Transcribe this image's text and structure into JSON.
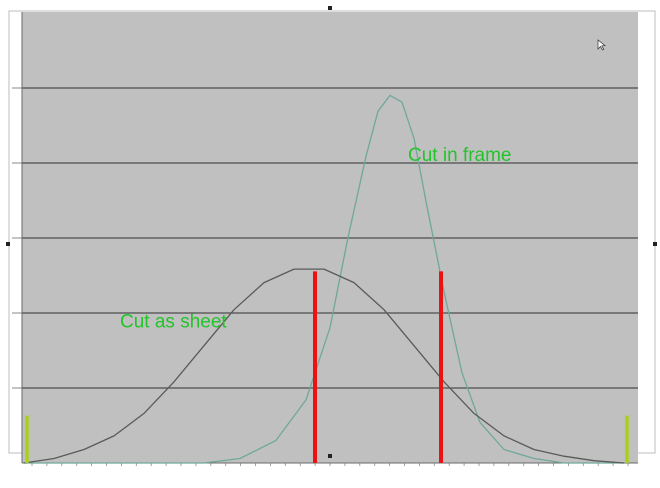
{
  "chart_data": {
    "type": "line",
    "title": "",
    "xlabel": "",
    "ylabel": "",
    "x_range": [
      0,
      100
    ],
    "y_range": [
      0,
      100
    ],
    "grid": true,
    "colors": {
      "plot_background": "#c0c0c0",
      "gridline": "#4e4e4e",
      "cut_in_frame": "#6fa89a",
      "cut_as_sheet": "#5a5a5a",
      "marker_red": "#ee1111",
      "marker_green": "#a8d11a",
      "annotation_text": "#22c42a"
    },
    "series": [
      {
        "key": "frame",
        "points": [
          [
            0,
            0
          ],
          [
            30,
            0
          ],
          [
            36,
            1
          ],
          [
            42,
            5
          ],
          [
            47,
            14
          ],
          [
            51,
            30
          ],
          [
            54,
            50
          ],
          [
            57,
            68
          ],
          [
            59,
            78
          ],
          [
            61,
            81.5
          ],
          [
            63,
            80
          ],
          [
            65,
            72
          ],
          [
            67,
            58
          ],
          [
            70,
            38
          ],
          [
            73,
            20
          ],
          [
            76,
            9
          ],
          [
            80,
            3
          ],
          [
            85,
            1
          ],
          [
            90,
            0
          ],
          [
            100,
            0
          ]
        ]
      },
      {
        "key": "sheet",
        "points": [
          [
            0,
            0
          ],
          [
            5,
            1
          ],
          [
            10,
            3
          ],
          [
            15,
            6
          ],
          [
            20,
            11
          ],
          [
            25,
            18
          ],
          [
            30,
            26
          ],
          [
            35,
            34
          ],
          [
            40,
            40
          ],
          [
            45,
            43
          ],
          [
            50,
            43
          ],
          [
            55,
            40
          ],
          [
            60,
            34
          ],
          [
            65,
            26
          ],
          [
            70,
            18
          ],
          [
            75,
            11
          ],
          [
            80,
            6
          ],
          [
            85,
            3
          ],
          [
            90,
            1.5
          ],
          [
            95,
            0.5
          ],
          [
            100,
            0
          ]
        ]
      }
    ],
    "vertical_markers": [
      {
        "x": 48.5,
        "height": 42.5,
        "color_key": "marker_red"
      },
      {
        "x": 69.5,
        "height": 42.5,
        "color_key": "marker_red"
      },
      {
        "x": 0.5,
        "height": 10.5,
        "color_key": "marker_green"
      },
      {
        "x": 100.5,
        "height": 10.5,
        "color_key": "marker_green"
      }
    ],
    "annotations": [
      {
        "text": "Cut in frame",
        "x": 64,
        "y": 67,
        "color_key": "annotation_text"
      },
      {
        "text": "Cut as sheet",
        "x": 16,
        "y": 30,
        "color_key": "annotation_text"
      }
    ]
  }
}
